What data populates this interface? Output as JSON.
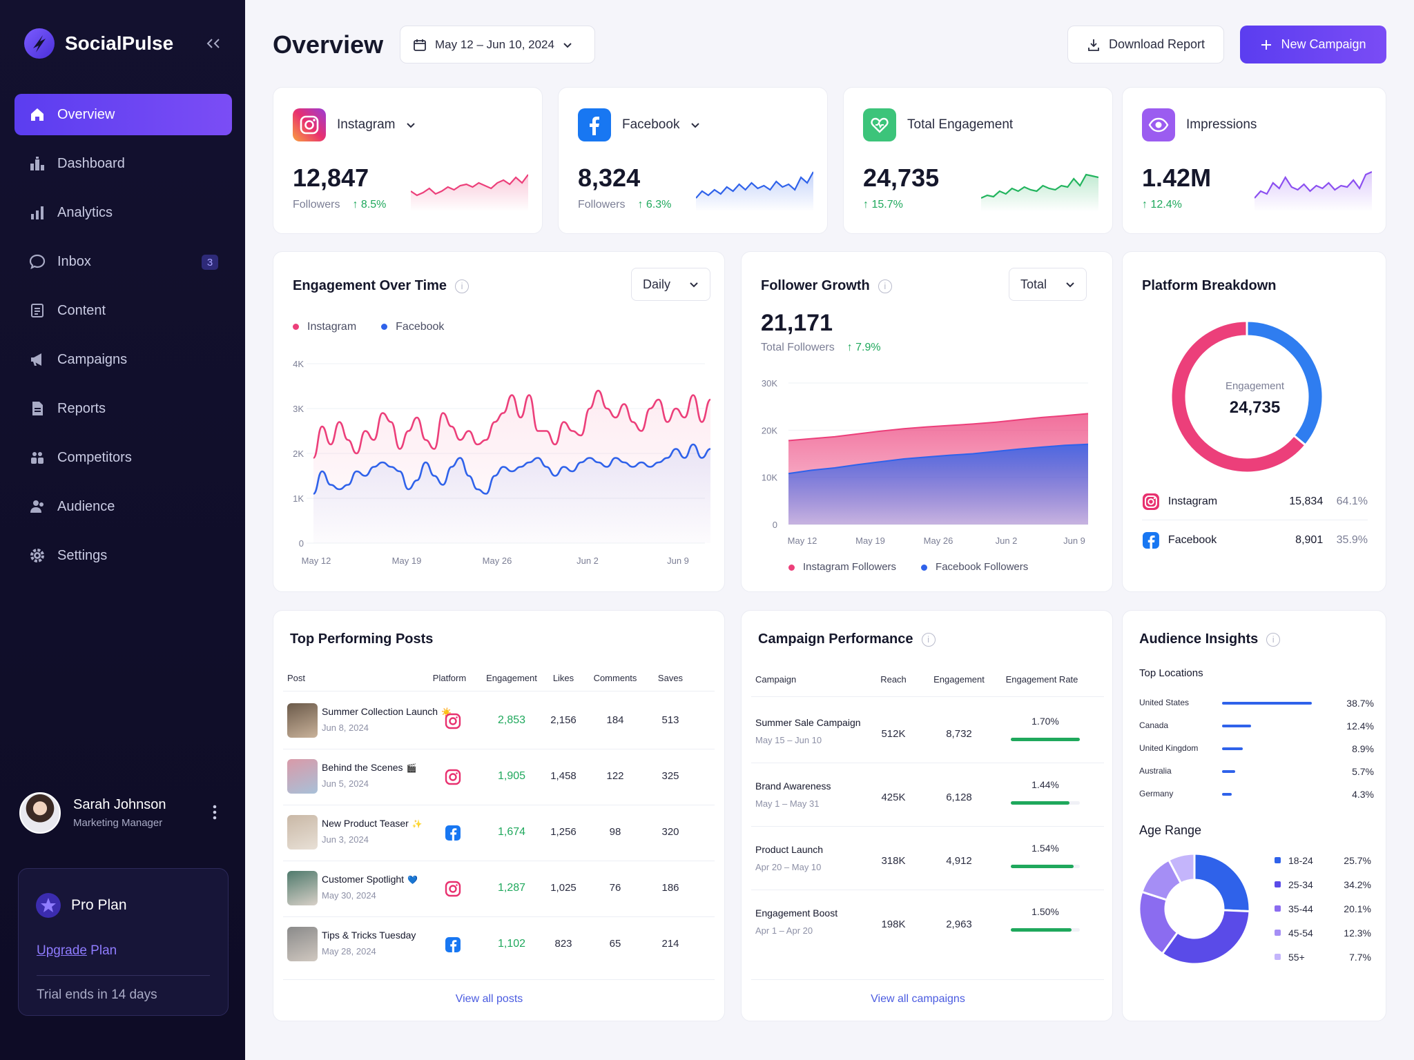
{
  "app": {
    "name": "SocialPulse"
  },
  "sidebar": {
    "items": [
      {
        "label": "Overview",
        "icon": "home-icon"
      },
      {
        "label": "Dashboard",
        "icon": "dashboard-icon"
      },
      {
        "label": "Analytics",
        "icon": "bar-chart-icon"
      },
      {
        "label": "Inbox",
        "icon": "chat-icon",
        "badge": "3"
      },
      {
        "label": "Content",
        "icon": "document-icon"
      },
      {
        "label": "Campaigns",
        "icon": "megaphone-icon"
      },
      {
        "label": "Reports",
        "icon": "report-icon"
      },
      {
        "label": "Competitors",
        "icon": "people-icon"
      },
      {
        "label": "Audience",
        "icon": "user-group-icon"
      },
      {
        "label": "Settings",
        "icon": "gear-icon"
      }
    ],
    "user": {
      "name": "Sarah Johnson",
      "role": "Marketing Manager"
    },
    "plan": {
      "title": "Pro Plan",
      "upgrade_link": "Upgrade",
      "upgrade_rest": " Plan",
      "trial": "Trial ends in 14 days"
    }
  },
  "header": {
    "title": "Overview",
    "date_range": "May 12 – Jun 10, 2024",
    "download_label": "Download Report",
    "new_campaign_label": "New Campaign"
  },
  "stats": [
    {
      "label": "Instagram",
      "value": "12,847",
      "sub": "Followers",
      "change": "8.5%",
      "color": "#ec3f7a",
      "dropdown": true
    },
    {
      "label": "Facebook",
      "value": "8,324",
      "sub": "Followers",
      "change": "6.3%",
      "color": "#2f62ea",
      "dropdown": true
    },
    {
      "label": "Total Engagement",
      "value": "24,735",
      "sub": "",
      "change": "15.7%",
      "color": "#22b45e",
      "dropdown": false
    },
    {
      "label": "Impressions",
      "value": "1.42M",
      "sub": "",
      "change": "12.4%",
      "color": "#8b4ff0",
      "dropdown": false
    }
  ],
  "engagement": {
    "title": "Engagement Over Time",
    "period": "Daily",
    "legend": [
      "Instagram",
      "Facebook"
    ],
    "colors": {
      "instagram": "#ec3f7a",
      "facebook": "#2f62ea"
    }
  },
  "follower_growth": {
    "title": "Follower Growth",
    "mode": "Total",
    "value": "21,171",
    "sub": "Total Followers",
    "change": "7.9%",
    "legend": [
      "Instagram Followers",
      "Facebook Followers"
    ]
  },
  "platform_breakdown": {
    "title": "Platform Breakdown",
    "center_label": "Engagement",
    "center_value": "24,735",
    "rows": [
      {
        "name": "Instagram",
        "value": "15,834",
        "pct": "64.1%",
        "share": 0.641
      },
      {
        "name": "Facebook",
        "value": "8,901",
        "pct": "35.9%",
        "share": 0.359
      }
    ]
  },
  "top_posts": {
    "title": "Top Performing Posts",
    "columns": [
      "Post",
      "Platform",
      "Engagement",
      "Likes",
      "Comments",
      "Saves"
    ],
    "rows": [
      {
        "title": "Summer Collection Launch",
        "emoji": "☀️",
        "date": "Jun 8, 2024",
        "platform": "instagram-icon",
        "engagement": "2,853",
        "likes": "2,156",
        "comments": "184",
        "saves": "513"
      },
      {
        "title": "Behind the Scenes",
        "emoji": "🎬",
        "date": "Jun 5, 2024",
        "platform": "instagram-icon",
        "engagement": "1,905",
        "likes": "1,458",
        "comments": "122",
        "saves": "325"
      },
      {
        "title": "New Product Teaser",
        "emoji": "✨",
        "date": "Jun 3, 2024",
        "platform": "facebook-icon",
        "engagement": "1,674",
        "likes": "1,256",
        "comments": "98",
        "saves": "320"
      },
      {
        "title": "Customer Spotlight",
        "emoji": "💙",
        "date": "May 30, 2024",
        "platform": "instagram-icon",
        "engagement": "1,287",
        "likes": "1,025",
        "comments": "76",
        "saves": "186"
      },
      {
        "title": "Tips & Tricks Tuesday",
        "emoji": "",
        "date": "May 28, 2024",
        "platform": "facebook-icon",
        "engagement": "1,102",
        "likes": "823",
        "comments": "65",
        "saves": "214"
      }
    ],
    "view_all": "View all posts"
  },
  "campaigns": {
    "title": "Campaign Performance",
    "columns": [
      "Campaign",
      "Reach",
      "Engagement",
      "Engagement Rate"
    ],
    "rows": [
      {
        "name": "Summer Sale Campaign",
        "dates": "May 15 – Jun 10",
        "reach": "512K",
        "engagement": "8,732",
        "rate": "1.70%",
        "rate_value": 1.7
      },
      {
        "name": "Brand Awareness",
        "dates": "May 1 – May 31",
        "reach": "425K",
        "engagement": "6,128",
        "rate": "1.44%",
        "rate_value": 1.44
      },
      {
        "name": "Product Launch",
        "dates": "Apr 20 – May 10",
        "reach": "318K",
        "engagement": "4,912",
        "rate": "1.54%",
        "rate_value": 1.54
      },
      {
        "name": "Engagement Boost",
        "dates": "Apr 1 – Apr 20",
        "reach": "198K",
        "engagement": "2,963",
        "rate": "1.50%",
        "rate_value": 1.5
      }
    ],
    "view_all": "View all campaigns"
  },
  "audience": {
    "title": "Audience Insights",
    "locations_title": "Top Locations",
    "locations": [
      {
        "name": "United States",
        "pct": "38.7%",
        "value": 38.7
      },
      {
        "name": "Canada",
        "pct": "12.4%",
        "value": 12.4
      },
      {
        "name": "United Kingdom",
        "pct": "8.9%",
        "value": 8.9
      },
      {
        "name": "Australia",
        "pct": "5.7%",
        "value": 5.7
      },
      {
        "name": "Germany",
        "pct": "4.3%",
        "value": 4.3
      }
    ],
    "age_title": "Age Range",
    "ages": [
      {
        "range": "18-24",
        "pct": "25.7%",
        "value": 25.7,
        "color": "#2f62ea"
      },
      {
        "range": "25-34",
        "pct": "34.2%",
        "value": 34.2,
        "color": "#5a4be8"
      },
      {
        "range": "35-44",
        "pct": "20.1%",
        "value": 20.1,
        "color": "#8b6cf0"
      },
      {
        "range": "45-54",
        "pct": "12.3%",
        "value": 12.3,
        "color": "#a58ef5"
      },
      {
        "range": "55+",
        "pct": "7.7%",
        "value": 7.7,
        "color": "#c4b5fb"
      }
    ]
  },
  "chart_data": [
    {
      "type": "line",
      "title": "Engagement Over Time",
      "x_ticks": [
        "May 12",
        "May 19",
        "May 26",
        "Jun 2",
        "Jun 9"
      ],
      "y_ticks": [
        "0",
        "1K",
        "2K",
        "3K",
        "4K"
      ],
      "ylim": [
        0,
        4000
      ],
      "series": [
        {
          "name": "Instagram",
          "values": [
            1900,
            2600,
            2200,
            2700,
            2300,
            2000,
            2500,
            2300,
            2900,
            2700,
            2100,
            2500,
            2800,
            2300,
            2100,
            2900,
            2600,
            2300,
            2500,
            2200,
            2300,
            2700,
            2900,
            3300,
            2800,
            3300,
            2500,
            2500,
            2200,
            2700,
            2500,
            2400,
            3000,
            3400,
            3000,
            2800,
            3100,
            2700,
            2500,
            3000,
            3200,
            2700,
            3000,
            2800,
            3300,
            2700,
            3200
          ]
        },
        {
          "name": "Facebook",
          "values": [
            1100,
            1600,
            1300,
            1200,
            1300,
            1600,
            1500,
            1700,
            1800,
            1700,
            1600,
            1200,
            1400,
            1800,
            1500,
            1300,
            1700,
            1900,
            1500,
            1200,
            1100,
            1500,
            1700,
            1600,
            1700,
            1800,
            1900,
            1700,
            1500,
            1700,
            1600,
            1800,
            1900,
            1800,
            1700,
            1900,
            1800,
            1700,
            1800,
            1700,
            1800,
            1900,
            2100,
            1900,
            2200,
            1900,
            2100
          ]
        }
      ]
    },
    {
      "type": "area",
      "title": "Follower Growth",
      "x_ticks": [
        "May 12",
        "May 19",
        "May 26",
        "Jun 2",
        "Jun 9"
      ],
      "y_ticks": [
        "0",
        "10K",
        "20K",
        "30K"
      ],
      "ylim": [
        0,
        30000
      ],
      "series": [
        {
          "name": "Instagram Followers",
          "values": [
            17800,
            18200,
            18600,
            19200,
            19800,
            20300,
            20700,
            21000,
            21300,
            21700,
            22200,
            22700,
            23100,
            23500
          ]
        },
        {
          "name": "Facebook Followers",
          "values": [
            10800,
            11500,
            12000,
            12700,
            13300,
            13900,
            14300,
            14700,
            15000,
            15500,
            16000,
            16400,
            16800,
            17000
          ]
        }
      ]
    },
    {
      "type": "pie",
      "title": "Platform Breakdown",
      "categories": [
        "Instagram",
        "Facebook"
      ],
      "values": [
        15834,
        8901
      ]
    },
    {
      "type": "pie",
      "title": "Age Range",
      "categories": [
        "18-24",
        "25-34",
        "35-44",
        "45-54",
        "55+"
      ],
      "values": [
        25.7,
        34.2,
        20.1,
        12.3,
        7.7
      ]
    }
  ],
  "sparklines": [
    [
      30,
      36,
      32,
      26,
      34,
      30,
      24,
      28,
      22,
      20,
      24,
      18,
      22,
      26,
      18,
      14,
      20,
      10,
      18,
      6
    ],
    [
      40,
      30,
      36,
      28,
      34,
      24,
      30,
      20,
      28,
      18,
      26,
      22,
      28,
      16,
      24,
      20,
      28,
      10,
      18,
      2
    ],
    [
      40,
      36,
      38,
      30,
      34,
      26,
      30,
      24,
      28,
      30,
      22,
      26,
      28,
      22,
      24,
      12,
      22,
      6,
      8,
      10
    ],
    [
      40,
      30,
      34,
      18,
      26,
      10,
      24,
      28,
      20,
      30,
      22,
      26,
      18,
      28,
      22,
      24,
      14,
      26,
      6,
      2
    ]
  ]
}
